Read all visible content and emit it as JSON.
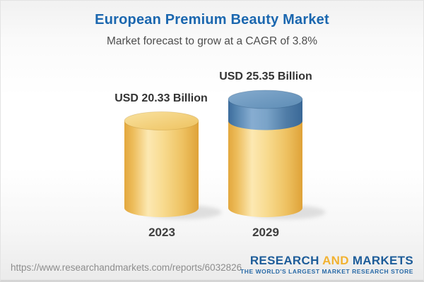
{
  "header": {
    "title": "European Premium Beauty Market",
    "subtitle": "Market forecast to grow at a CAGR of 3.8%"
  },
  "chart_data": {
    "type": "bar",
    "subtype": "3d-cylinder-column",
    "unit": "USD Billion",
    "categories": [
      "2023",
      "2029"
    ],
    "values": [
      20.33,
      25.35
    ],
    "cagr_percent": 3.8,
    "ylim": [
      0,
      25.35
    ],
    "grid": false,
    "legend": false,
    "bars": [
      {
        "year": "2023",
        "label": "USD 20.33 Billion",
        "total": 20.33,
        "segments": [
          {
            "name": "base-2023",
            "color_key": "gold",
            "value": 20.33
          }
        ]
      },
      {
        "year": "2029",
        "label": "USD 25.35 Billion",
        "total": 25.35,
        "segments": [
          {
            "name": "base-2029",
            "color_key": "gold",
            "value": 20.33
          },
          {
            "name": "growth-2029",
            "color_key": "blue",
            "value": 5.02
          }
        ]
      }
    ],
    "colors": {
      "gold": "#f3c96b",
      "blue": "#5585b5"
    }
  },
  "footer": {
    "url": "https://www.researchandmarkets.com/reports/6032826",
    "logo": {
      "part1": "RESEARCH",
      "part2": "AND",
      "part3": "MARKETS",
      "tagline": "THE WORLD'S LARGEST MARKET RESEARCH STORE",
      "blue": "#1d5c99",
      "orange": "#f2b231"
    }
  },
  "theme": {
    "title_color": "#1b67af",
    "subtitle_color": "#4d4d4d",
    "value_label_color": "#333333",
    "year_label_color": "#3f3f3f",
    "url_color": "#8d8d8d"
  }
}
